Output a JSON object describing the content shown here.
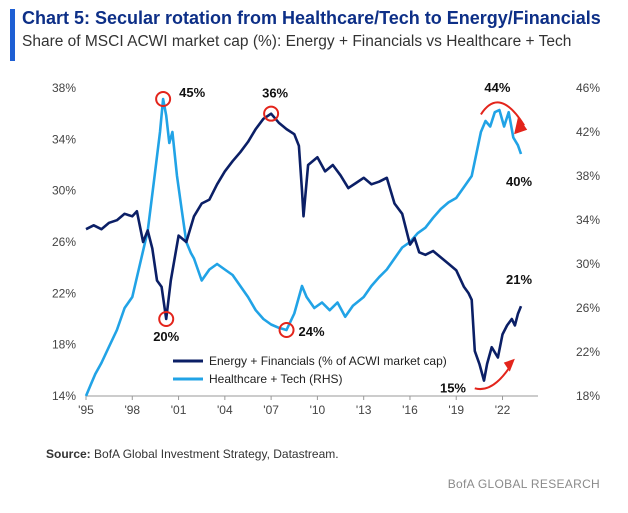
{
  "header": {
    "title": "Chart 5: Secular rotation from Healthcare/Tech to Energy/Financials",
    "subtitle": "Share of MSCI ACWI market cap (%): Energy + Financials vs Healthcare + Tech"
  },
  "footer": {
    "source_label": "Source:",
    "source_text": "BofA Global Investment Strategy, Datastream.",
    "brand": "BofA GLOBAL RESEARCH"
  },
  "chart_data": {
    "type": "line",
    "x_ticks": [
      "'95",
      "'98",
      "'01",
      "'04",
      "'07",
      "'10",
      "'13",
      "'16",
      "'19",
      "'22"
    ],
    "x_tick_years": [
      1995,
      1998,
      2001,
      2004,
      2007,
      2010,
      2013,
      2016,
      2019,
      2022
    ],
    "xlim": [
      1995,
      2024.3
    ],
    "y_left": {
      "ylim": [
        14,
        38
      ],
      "ticks": [
        "14%",
        "18%",
        "22%",
        "26%",
        "30%",
        "34%",
        "38%"
      ]
    },
    "y_right": {
      "ylim": [
        18,
        46
      ],
      "ticks": [
        "18%",
        "22%",
        "26%",
        "30%",
        "34%",
        "38%",
        "42%",
        "46%"
      ]
    },
    "colors": {
      "energy_financials": "#0b1f66",
      "healthcare_tech": "#21a3e6",
      "annotation": "#e3241b"
    },
    "series": [
      {
        "name": "Energy + Financials (% of ACWI market cap)",
        "axis": "left",
        "points": [
          [
            1995.0,
            27.0
          ],
          [
            1995.5,
            27.3
          ],
          [
            1996.0,
            27.0
          ],
          [
            1996.5,
            27.5
          ],
          [
            1997.0,
            27.7
          ],
          [
            1997.5,
            28.2
          ],
          [
            1998.0,
            28.0
          ],
          [
            1998.3,
            28.4
          ],
          [
            1998.7,
            26.0
          ],
          [
            1999.0,
            26.9
          ],
          [
            1999.3,
            25.5
          ],
          [
            1999.6,
            23.0
          ],
          [
            1999.9,
            22.5
          ],
          [
            2000.2,
            20.0
          ],
          [
            2000.5,
            23.0
          ],
          [
            2001.0,
            26.5
          ],
          [
            2001.5,
            26.0
          ],
          [
            2002.0,
            28.0
          ],
          [
            2002.5,
            29.0
          ],
          [
            2003.0,
            29.3
          ],
          [
            2003.5,
            30.5
          ],
          [
            2004.0,
            31.5
          ],
          [
            2004.5,
            32.3
          ],
          [
            2005.0,
            33.0
          ],
          [
            2005.5,
            33.8
          ],
          [
            2006.0,
            34.8
          ],
          [
            2006.5,
            35.6
          ],
          [
            2007.0,
            36.0
          ],
          [
            2007.5,
            35.3
          ],
          [
            2008.0,
            34.8
          ],
          [
            2008.5,
            34.4
          ],
          [
            2008.8,
            33.5
          ],
          [
            2009.0,
            30.0
          ],
          [
            2009.1,
            28.0
          ],
          [
            2009.4,
            32.0
          ],
          [
            2010.0,
            32.6
          ],
          [
            2010.5,
            31.5
          ],
          [
            2011.0,
            32.0
          ],
          [
            2011.5,
            31.2
          ],
          [
            2012.0,
            30.2
          ],
          [
            2012.5,
            30.6
          ],
          [
            2013.0,
            31.0
          ],
          [
            2013.5,
            30.5
          ],
          [
            2014.0,
            30.7
          ],
          [
            2014.5,
            31.0
          ],
          [
            2015.0,
            29.0
          ],
          [
            2015.5,
            28.2
          ],
          [
            2016.0,
            25.8
          ],
          [
            2016.3,
            26.3
          ],
          [
            2016.6,
            25.2
          ],
          [
            2017.0,
            25.0
          ],
          [
            2017.5,
            25.3
          ],
          [
            2018.0,
            24.8
          ],
          [
            2018.5,
            24.3
          ],
          [
            2019.0,
            23.8
          ],
          [
            2019.5,
            22.5
          ],
          [
            2019.8,
            22.0
          ],
          [
            2020.0,
            21.5
          ],
          [
            2020.2,
            17.5
          ],
          [
            2020.5,
            16.5
          ],
          [
            2020.8,
            15.2
          ],
          [
            2021.0,
            16.5
          ],
          [
            2021.3,
            17.8
          ],
          [
            2021.7,
            17.0
          ],
          [
            2022.0,
            18.8
          ],
          [
            2022.3,
            19.5
          ],
          [
            2022.6,
            20.0
          ],
          [
            2022.8,
            19.5
          ],
          [
            2023.0,
            20.4
          ],
          [
            2023.2,
            21.0
          ]
        ]
      },
      {
        "name": "Healthcare + Tech (RHS)",
        "axis": "right",
        "points": [
          [
            1995.0,
            18.0
          ],
          [
            1995.3,
            19.0
          ],
          [
            1995.6,
            20.0
          ],
          [
            1996.0,
            21.0
          ],
          [
            1996.5,
            22.5
          ],
          [
            1997.0,
            24.0
          ],
          [
            1997.5,
            26.0
          ],
          [
            1998.0,
            27.0
          ],
          [
            1998.5,
            30.0
          ],
          [
            1999.0,
            33.0
          ],
          [
            1999.4,
            37.5
          ],
          [
            1999.8,
            42.0
          ],
          [
            2000.0,
            45.0
          ],
          [
            2000.2,
            43.5
          ],
          [
            2000.4,
            41.0
          ],
          [
            2000.6,
            42.0
          ],
          [
            2000.9,
            38.0
          ],
          [
            2001.2,
            35.0
          ],
          [
            2001.5,
            32.0
          ],
          [
            2001.8,
            31.0
          ],
          [
            2002.0,
            30.5
          ],
          [
            2002.5,
            28.5
          ],
          [
            2003.0,
            29.5
          ],
          [
            2003.5,
            30.0
          ],
          [
            2004.0,
            29.5
          ],
          [
            2004.5,
            29.0
          ],
          [
            2005.0,
            28.0
          ],
          [
            2005.5,
            27.0
          ],
          [
            2006.0,
            25.8
          ],
          [
            2006.5,
            25.0
          ],
          [
            2007.0,
            24.5
          ],
          [
            2007.5,
            24.2
          ],
          [
            2008.0,
            24.0
          ],
          [
            2008.5,
            25.5
          ],
          [
            2009.0,
            28.0
          ],
          [
            2009.3,
            27.0
          ],
          [
            2009.8,
            26.0
          ],
          [
            2010.3,
            26.5
          ],
          [
            2010.8,
            25.8
          ],
          [
            2011.3,
            26.5
          ],
          [
            2011.8,
            25.2
          ],
          [
            2012.3,
            26.2
          ],
          [
            2013.0,
            27.0
          ],
          [
            2013.5,
            28.0
          ],
          [
            2014.0,
            28.8
          ],
          [
            2014.5,
            29.5
          ],
          [
            2015.0,
            30.5
          ],
          [
            2015.5,
            31.5
          ],
          [
            2016.0,
            32.0
          ],
          [
            2016.5,
            32.8
          ],
          [
            2017.0,
            33.3
          ],
          [
            2017.5,
            34.2
          ],
          [
            2018.0,
            35.0
          ],
          [
            2018.5,
            35.6
          ],
          [
            2019.0,
            36.0
          ],
          [
            2019.5,
            37.0
          ],
          [
            2020.0,
            38.0
          ],
          [
            2020.3,
            40.0
          ],
          [
            2020.6,
            42.0
          ],
          [
            2020.9,
            43.0
          ],
          [
            2021.2,
            42.5
          ],
          [
            2021.5,
            43.8
          ],
          [
            2021.8,
            44.0
          ],
          [
            2022.1,
            42.5
          ],
          [
            2022.4,
            43.8
          ],
          [
            2022.7,
            41.5
          ],
          [
            2023.0,
            40.8
          ],
          [
            2023.2,
            40.0
          ]
        ]
      }
    ],
    "annotations": [
      {
        "text": "45%",
        "x": 2000.0,
        "y": 45,
        "axis": "right",
        "circle": true
      },
      {
        "text": "20%",
        "x": 2000.2,
        "y": 20,
        "axis": "left",
        "circle": true
      },
      {
        "text": "36%",
        "x": 2007.0,
        "y": 36,
        "axis": "left",
        "circle": true
      },
      {
        "text": "24%",
        "x": 2008.0,
        "y": 24,
        "axis": "right",
        "circle": true
      },
      {
        "text": "44%",
        "x": 2021.8,
        "y": 44,
        "axis": "right",
        "circle": false
      },
      {
        "text": "40%",
        "x": 2023.2,
        "y": 40,
        "axis": "right",
        "circle": false
      },
      {
        "text": "21%",
        "x": 2023.2,
        "y": 21,
        "axis": "left",
        "circle": false
      },
      {
        "text": "15%",
        "x": 2020.8,
        "y": 15.2,
        "axis": "left",
        "circle": false
      }
    ],
    "legend_position": "bottom-center"
  }
}
